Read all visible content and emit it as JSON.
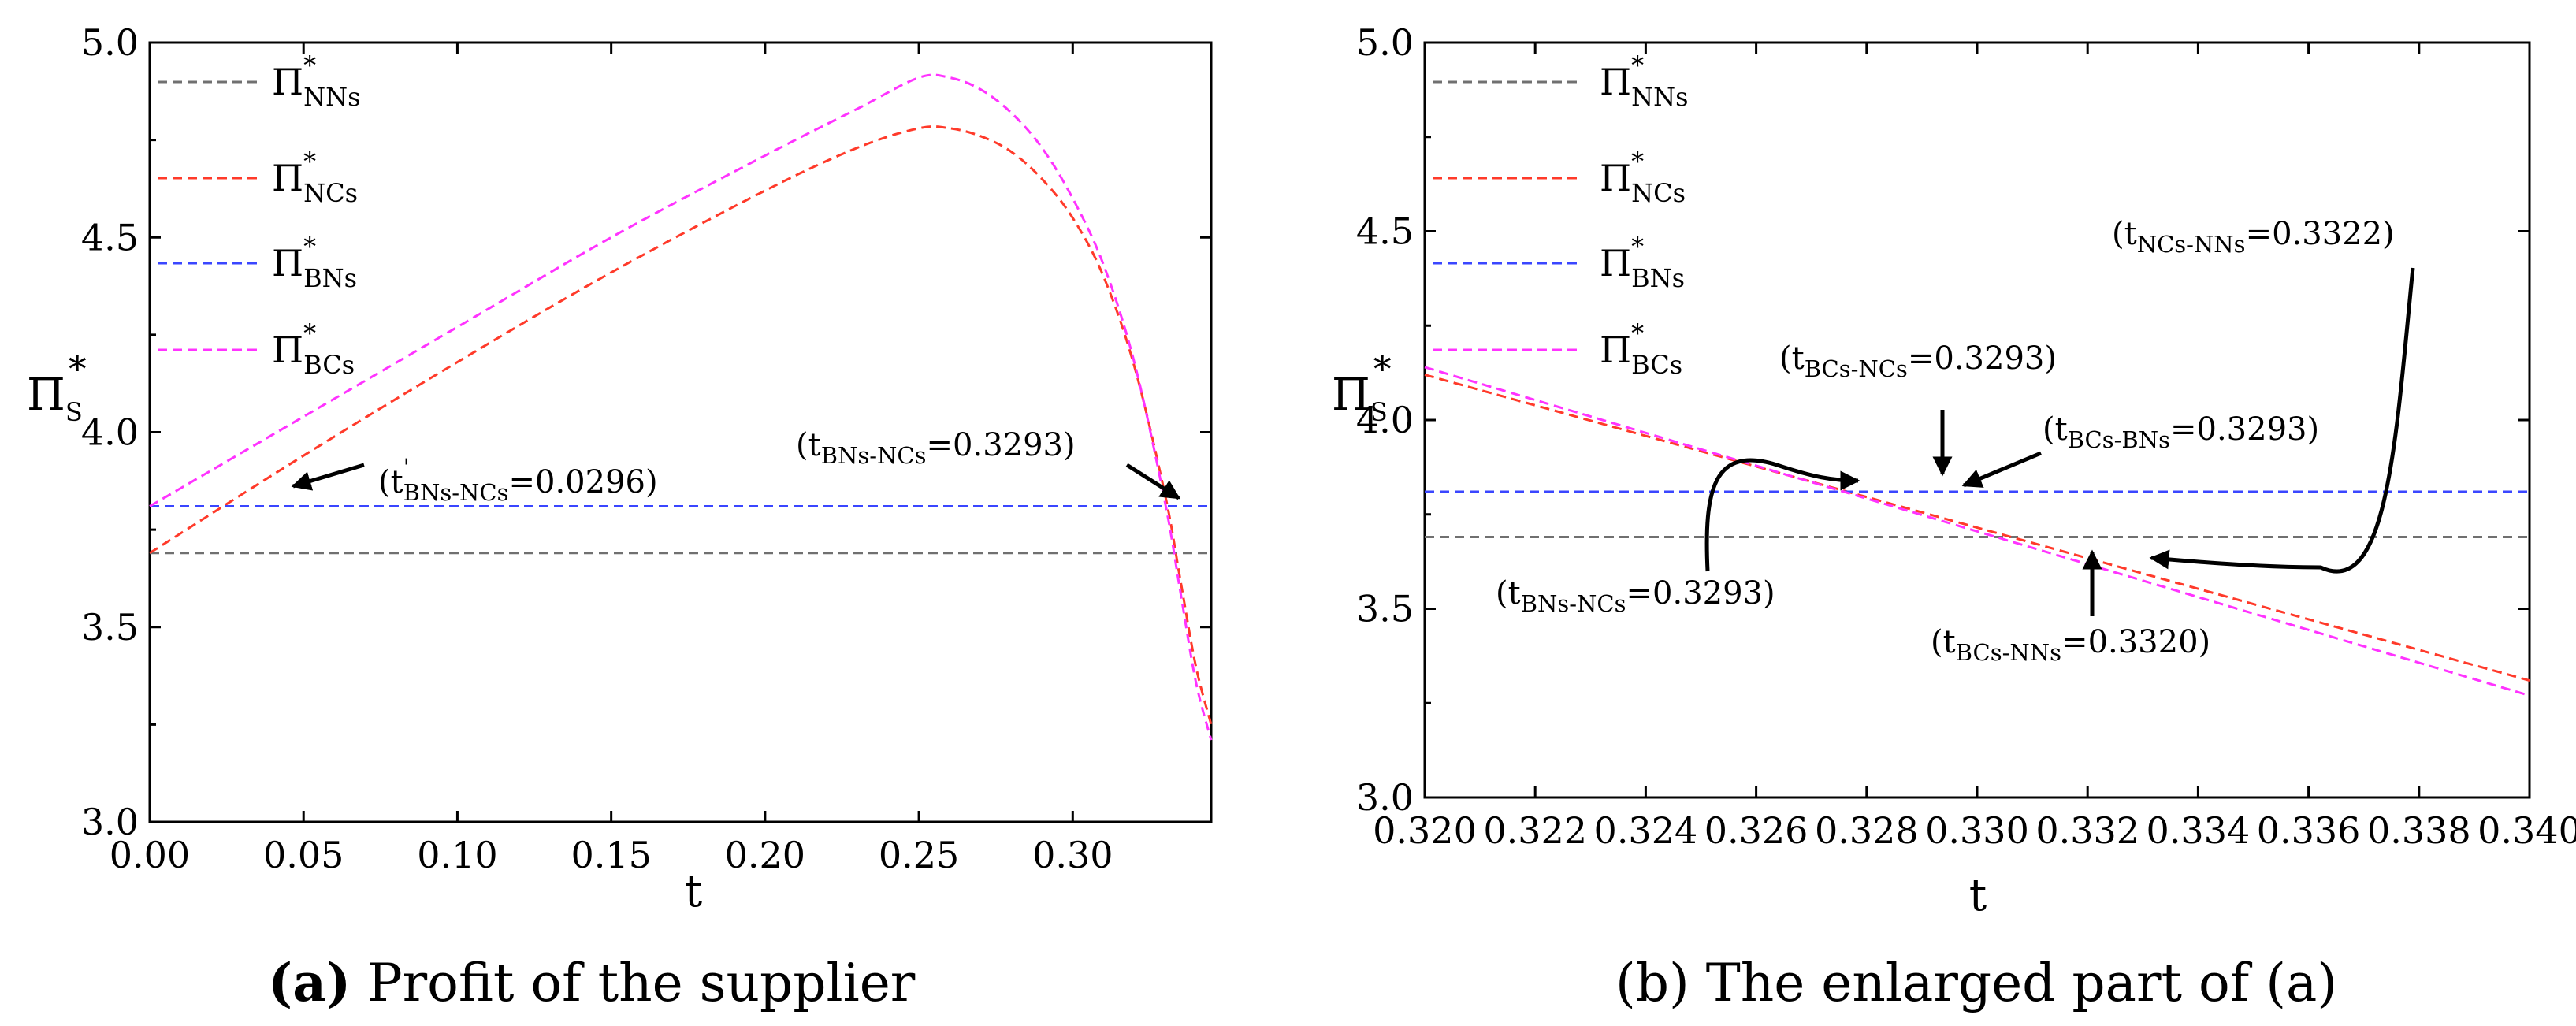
{
  "chart_data": [
    {
      "type": "line",
      "title": "",
      "xlabel": "t",
      "ylabel": "Π",
      "ylabel_sup": "*",
      "ylabel_sub": "S",
      "xlim": [
        0.0,
        0.345
      ],
      "ylim": [
        3.0,
        5.0
      ],
      "xticks": [
        "0.00",
        "0.05",
        "0.10",
        "0.15",
        "0.20",
        "0.25",
        "0.30"
      ],
      "xtick_values": [
        0.0,
        0.05,
        0.1,
        0.15,
        0.2,
        0.25,
        0.3
      ],
      "yticks": [
        "3.0",
        "3.5",
        "4.0",
        "4.5",
        "5.0"
      ],
      "ytick_values": [
        3.0,
        3.5,
        4.0,
        4.5,
        5.0
      ],
      "legend_position": "top-left",
      "series": [
        {
          "name": "Π",
          "sup": "*",
          "sub": "NNs",
          "color": "#707070",
          "x": [
            0.0,
            0.345
          ],
          "y": [
            3.69,
            3.69
          ]
        },
        {
          "name": "Π",
          "sup": "*",
          "sub": "NCs",
          "color": "#ff3a2a",
          "x": [
            0.0,
            0.05,
            0.1,
            0.15,
            0.2,
            0.23,
            0.25,
            0.26,
            0.27,
            0.28,
            0.29,
            0.3,
            0.31,
            0.32,
            0.33,
            0.335,
            0.34,
            0.345
          ],
          "y": [
            3.69,
            3.94,
            4.18,
            4.41,
            4.62,
            4.73,
            4.78,
            4.78,
            4.76,
            4.72,
            4.65,
            4.55,
            4.4,
            4.17,
            3.84,
            3.62,
            3.4,
            3.25
          ]
        },
        {
          "name": "Π",
          "sup": "*",
          "sub": "BNs",
          "color": "#3a46ff",
          "x": [
            0.0,
            0.345
          ],
          "y": [
            3.81,
            3.81
          ]
        },
        {
          "name": "Π",
          "sup": "*",
          "sub": "BCs",
          "color": "#ff33ff",
          "x": [
            0.0,
            0.05,
            0.1,
            0.15,
            0.2,
            0.23,
            0.25,
            0.26,
            0.27,
            0.28,
            0.29,
            0.3,
            0.31,
            0.32,
            0.33,
            0.335,
            0.34,
            0.345
          ],
          "y": [
            3.81,
            4.04,
            4.27,
            4.5,
            4.71,
            4.83,
            4.91,
            4.91,
            4.88,
            4.82,
            4.73,
            4.6,
            4.43,
            4.18,
            3.82,
            3.59,
            3.36,
            3.21
          ]
        }
      ],
      "annotations": [
        {
          "prefix": "(t",
          "sup": "'",
          "sub": "BNs-NCs",
          "suffix": "=0.0296)",
          "target": [
            0.035,
            3.87
          ]
        },
        {
          "prefix": "(t",
          "sub": "BNs-NCs",
          "suffix": "=0.3293)",
          "target": [
            0.3293,
            3.81
          ]
        }
      ],
      "caption_bold": "(a)",
      "caption": " Profit of the supplier"
    },
    {
      "type": "line",
      "title": "",
      "xlabel": "t",
      "ylabel": "Π",
      "ylabel_sup": "*",
      "ylabel_sub": "S",
      "xlim": [
        0.32,
        0.34
      ],
      "ylim": [
        3.0,
        5.0
      ],
      "xticks": [
        "0.320",
        "0.322",
        "0.324",
        "0.326",
        "0.328",
        "0.330",
        "0.332",
        "0.334",
        "0.336",
        "0.338",
        "0.340"
      ],
      "xtick_values": [
        0.32,
        0.322,
        0.324,
        0.326,
        0.328,
        0.33,
        0.332,
        0.334,
        0.336,
        0.338,
        0.34
      ],
      "yticks": [
        "3.0",
        "3.5",
        "4.0",
        "4.5",
        "5.0"
      ],
      "ytick_values": [
        3.0,
        3.5,
        4.0,
        4.5,
        5.0
      ],
      "legend_position": "top-left",
      "series": [
        {
          "name": "Π",
          "sup": "*",
          "sub": "NNs",
          "color": "#707070",
          "x": [
            0.32,
            0.34
          ],
          "y": [
            3.69,
            3.69
          ]
        },
        {
          "name": "Π",
          "sup": "*",
          "sub": "NCs",
          "color": "#ff3a2a",
          "x": [
            0.32,
            0.34
          ],
          "y": [
            4.12,
            3.31
          ]
        },
        {
          "name": "Π",
          "sup": "*",
          "sub": "BNs",
          "color": "#3a46ff",
          "x": [
            0.32,
            0.34
          ],
          "y": [
            3.81,
            3.81
          ]
        },
        {
          "name": "Π",
          "sup": "*",
          "sub": "BCs",
          "color": "#ff33ff",
          "x": [
            0.32,
            0.34
          ],
          "y": [
            4.14,
            3.27
          ]
        }
      ],
      "annotations": [
        {
          "prefix": "(t",
          "sub": "NCs-NNs",
          "suffix": "=0.3322)",
          "target": [
            0.3322,
            3.69
          ]
        },
        {
          "prefix": "(t",
          "sub": "BCs-NCs",
          "suffix": "=0.3293)",
          "target": [
            0.3293,
            3.81
          ]
        },
        {
          "prefix": "(t",
          "sub": "BCs-BNs",
          "suffix": "=0.3293)",
          "target": [
            0.3293,
            3.81
          ]
        },
        {
          "prefix": "(t",
          "sub": "BNs-NCs",
          "suffix": "=0.3293)",
          "target": [
            0.3293,
            3.81
          ]
        },
        {
          "prefix": "(t",
          "sub": "BCs-NNs",
          "suffix": "=0.3320)",
          "target": [
            0.332,
            3.69
          ]
        }
      ],
      "caption_bold": "",
      "caption": "(b) The enlarged part of (a)"
    }
  ]
}
